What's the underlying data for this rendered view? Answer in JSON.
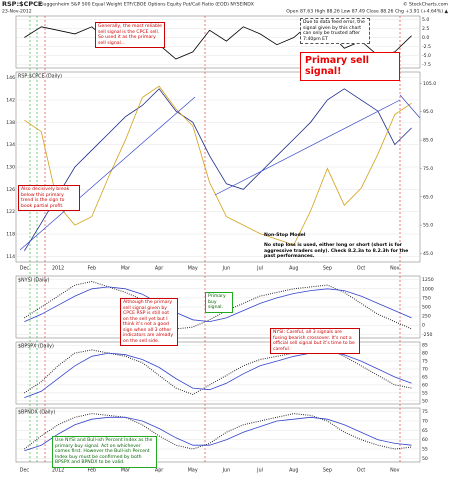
{
  "chart_data": {
    "title": "RSP:$CPCE",
    "subtitle": "Guggenheim S&P 500 Equal Weight ETF/CBOE Options Equity Put/Call Ratio (EOD) NYSEINDX",
    "date": "23-Nov-2012",
    "quote": "Open 87.63  High 88.26  Low 87.49  Close 88.26  Chg +3.91 (+4.64%) ▲",
    "source": "© StockCharts.com",
    "categories": [
      "Dec",
      null,
      "2012",
      null,
      "Feb",
      null,
      "Mar",
      null,
      "Apr",
      null,
      "May",
      null,
      "Jun",
      null,
      "Jul",
      null,
      "Aug",
      null,
      "Sep",
      null,
      "Oct",
      null,
      "Nov",
      null
    ],
    "panels": [
      {
        "type": "line",
        "ylim": [
          -8.5,
          6
        ],
        "yticks": [
          {
            "value": 5,
            "label": "5.0"
          },
          {
            "value": 2.5,
            "label": "2.5"
          },
          {
            "value": 0,
            "label": "0.0"
          },
          -2.5,
          {
            "value": -5,
            "label": "-5.0"
          },
          -7.5
        ],
        "series": [
          {
            "color": "#000000",
            "values": [
              0,
              3,
              2,
              1,
              3,
              -1,
              2,
              4,
              -2,
              -6,
              -4,
              2,
              -1,
              3,
              1,
              -2,
              0,
              4,
              2,
              -3,
              -1,
              -5,
              -4,
              0.5
            ]
          }
        ],
        "annotations": [
          "Generally, the most reliable sell signal is the CPCE sell. So used it as the primary sell signal...",
          "Due to data feed error, the signal given by this chart can only be trusted after 7:40pm ET",
          "Primary sell signal!"
        ]
      },
      {
        "type": "line",
        "label": "RSP:$CPCE (Daily)",
        "ylim": [
          113,
          147
        ],
        "yticks": [
          146,
          142,
          138,
          134,
          130,
          126,
          122,
          118,
          114
        ],
        "y2lim": [
          42,
          109
        ],
        "y2ticks": [
          {
            "value": 105,
            "label": "105.0"
          },
          {
            "value": 95,
            "label": "95.0"
          },
          {
            "value": 85,
            "label": "85.0"
          },
          {
            "value": 75,
            "label": "75.0"
          },
          {
            "value": 65,
            "label": "65.0"
          },
          {
            "value": 55,
            "label": "55.0"
          },
          {
            "value": 45,
            "label": "45.0"
          }
        ],
        "series": [
          {
            "color": "#1a2a8a",
            "values": [
              115,
              120,
              125,
              130,
              133,
              136,
              139,
              141,
              144,
              140,
              138,
              132,
              127,
              126,
              129,
              132,
              135,
              138,
              142,
              144,
              142,
              140,
              134,
              137
            ]
          },
          {
            "color": "#d4a017",
            "axis": "y2",
            "values": [
              92,
              88,
              62,
              55,
              58,
              72,
              85,
              100,
              104,
              96,
              90,
              70,
              58,
              55,
              52,
              50,
              48,
              60,
              75,
              62,
              68,
              80,
              94,
              98
            ]
          }
        ],
        "annotations": [
          "Also decisively break below this primary trend is the sign to book partial profit.",
          "Non-Stop Model",
          "No stop loss is used, either long or short (short is for aggressive traders only). Check 8.2.3a to 8.2.3h for the past performances."
        ]
      },
      {
        "type": "line",
        "label": "$NYSI (Daily)",
        "ylim": [
          -350,
          1350
        ],
        "yticks": [
          1250,
          1000,
          750,
          500,
          250,
          0,
          -250
        ],
        "series": [
          {
            "color": "#000000",
            "dotted": true,
            "values": [
              200,
              500,
              800,
              1100,
              1200,
              1050,
              900,
              700,
              300,
              -100,
              -50,
              150,
              400,
              600,
              800,
              900,
              1000,
              1050,
              1100,
              900,
              600,
              300,
              100,
              -100
            ]
          },
          {
            "color": "#3344cc",
            "values": [
              100,
              300,
              550,
              800,
              1000,
              1050,
              1000,
              850,
              600,
              350,
              150,
              100,
              200,
              400,
              600,
              750,
              870,
              950,
              1000,
              950,
              800,
              600,
              400,
              200
            ]
          }
        ],
        "annotations": [
          "Although the primary sell signal given by CPCE RSP is still not on the sell yet but I think it's not a good sign when all 3 other indicators are already on the sell side.",
          "Primary buy signal.",
          "NYSI: Careful, all 3 signals are fusing bearish crossover. It's not a official sell signal but it's time to be careful."
        ]
      },
      {
        "type": "line",
        "label": "$BPSPX (Daily)",
        "ylim": [
          48,
          87
        ],
        "yticks": [
          85,
          80,
          75,
          70,
          65,
          60,
          55,
          50
        ],
        "series": [
          {
            "color": "#000000",
            "dotted": true,
            "values": [
              55,
              62,
              72,
              80,
              82,
              80,
              78,
              74,
              66,
              58,
              54,
              60,
              66,
              72,
              76,
              78,
              80,
              82,
              83,
              78,
              72,
              66,
              60,
              58
            ]
          },
          {
            "color": "#3344cc",
            "values": [
              52,
              56,
              64,
              72,
              78,
              80,
              79,
              76,
              71,
              64,
              58,
              57,
              61,
              67,
              72,
              75,
              78,
              80,
              81,
              79,
              75,
              70,
              65,
              61
            ]
          }
        ],
        "annotations": []
      },
      {
        "type": "line",
        "label": "$BPNDX (Daily)",
        "ylim": [
          48,
          77
        ],
        "yticks": [
          75,
          70,
          65,
          60,
          55,
          50
        ],
        "series": [
          {
            "color": "#000000",
            "dotted": true,
            "values": [
              55,
              62,
              68,
              72,
              74,
              73,
              72,
              68,
              62,
              57,
              55,
              58,
              64,
              68,
              70,
              72,
              74,
              73,
              70,
              64,
              60,
              57,
              55,
              56
            ]
          },
          {
            "color": "#3344cc",
            "values": [
              54,
              57,
              63,
              68,
              71,
              72,
              72,
              70,
              66,
              61,
              57,
              57,
              60,
              64,
              67,
              70,
              71,
              72,
              71,
              68,
              64,
              60,
              58,
              57
            ]
          }
        ],
        "annotations": [
          "Use NYSI and Bull-ish Percent Index as the primary buy signal. Act on whichever comes first. However the Bull-ish Percent Index buy must be confirmed by both BPSPX and BPNDX to be valid."
        ]
      }
    ]
  }
}
